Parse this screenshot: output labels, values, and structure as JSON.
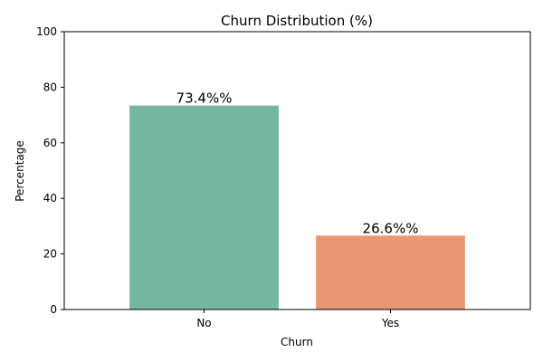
{
  "chart_data": {
    "type": "bar",
    "title": "Churn Distribution (%)",
    "xlabel": "Churn",
    "ylabel": "Percentage",
    "categories": [
      "No",
      "Yes"
    ],
    "values": [
      73.4,
      26.6
    ],
    "data_labels": [
      "73.4%%",
      "26.6%%"
    ],
    "ylim": [
      0,
      100
    ],
    "yticks": [
      0,
      20,
      40,
      60,
      80,
      100
    ],
    "colors": [
      "#73b7a1",
      "#e99875"
    ],
    "grid": false,
    "legend": "none"
  }
}
